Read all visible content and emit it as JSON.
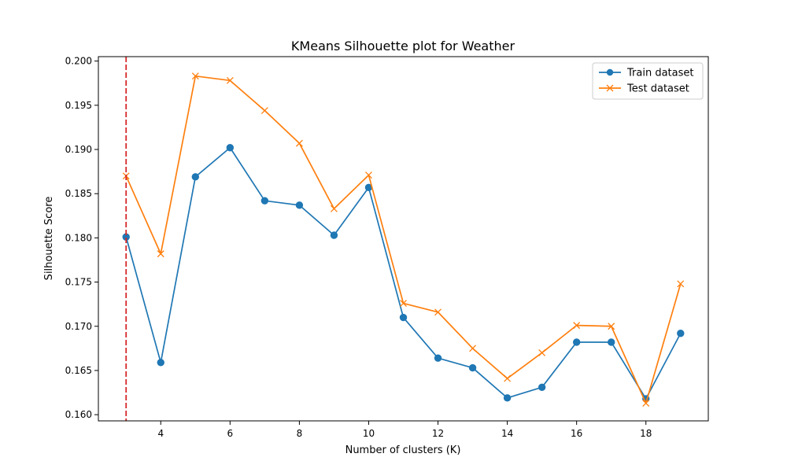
{
  "chart_data": {
    "type": "line",
    "title": "KMeans Silhouette plot for Weather",
    "xlabel": "Number of clusters (K)",
    "ylabel": "Silhouette Score",
    "x": [
      3,
      4,
      5,
      6,
      7,
      8,
      9,
      10,
      11,
      12,
      13,
      14,
      15,
      16,
      17,
      18,
      19
    ],
    "xlim": [
      2.2,
      19.8
    ],
    "ylim": [
      0.1593,
      0.2005
    ],
    "xticks": [
      4,
      6,
      8,
      10,
      12,
      14,
      16,
      18
    ],
    "yticks": [
      0.16,
      0.165,
      0.17,
      0.175,
      0.18,
      0.185,
      0.19,
      0.195,
      0.2
    ],
    "xtick_labels": [
      "4",
      "6",
      "8",
      "10",
      "12",
      "14",
      "16",
      "18"
    ],
    "ytick_labels": [
      "0.160",
      "0.165",
      "0.170",
      "0.175",
      "0.180",
      "0.185",
      "0.190",
      "0.195",
      "0.200"
    ],
    "grid": false,
    "legend_position": "top-right",
    "series": [
      {
        "name": "Train dataset",
        "marker": "circle",
        "color": "#1f77b4",
        "values": [
          0.1801,
          0.1659,
          0.1869,
          0.1902,
          0.1842,
          0.1837,
          0.1803,
          0.1857,
          0.171,
          0.1664,
          0.1653,
          0.1619,
          0.1631,
          0.1682,
          0.1682,
          0.1618,
          0.1692
        ]
      },
      {
        "name": "Test dataset",
        "marker": "x",
        "color": "#ff7f0e",
        "values": [
          0.187,
          0.1782,
          0.1983,
          0.1978,
          0.1944,
          0.1907,
          0.1833,
          0.1871,
          0.1726,
          0.1716,
          0.1675,
          0.1641,
          0.167,
          0.1701,
          0.17,
          0.1613,
          0.1748
        ]
      }
    ],
    "reference_line": {
      "orientation": "vertical",
      "x": 3,
      "style": "dashed",
      "color": "#d62728"
    }
  }
}
